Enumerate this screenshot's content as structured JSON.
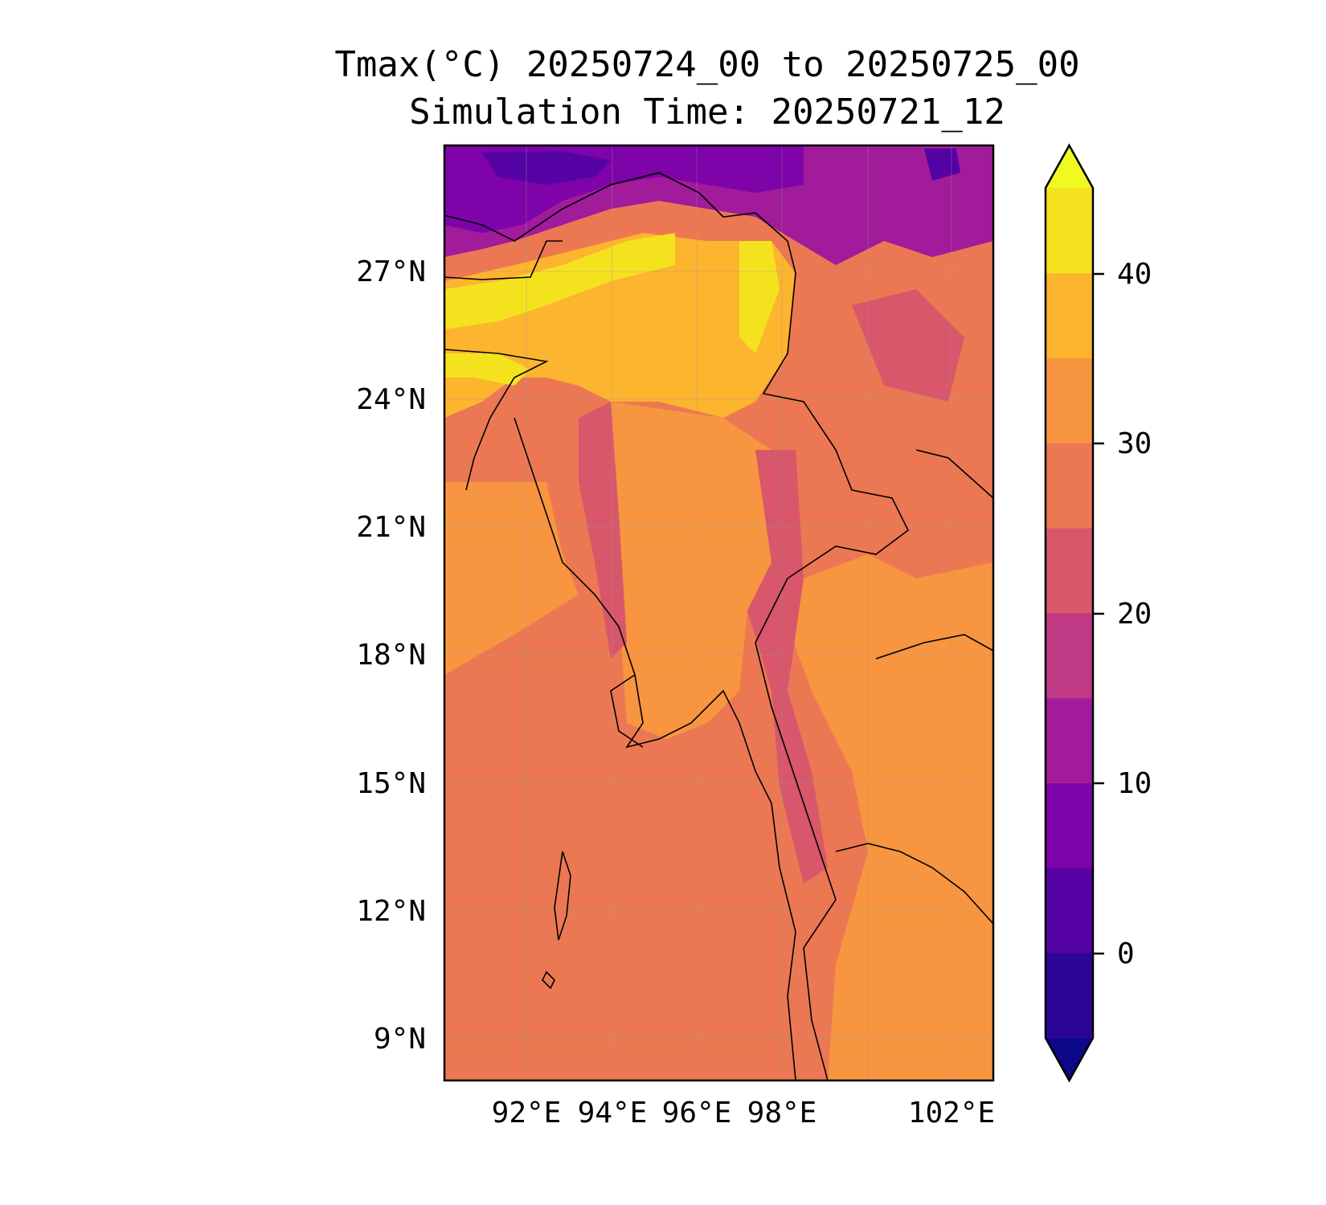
{
  "title": {
    "line1": "Tmax(°C) 20250724_00 to 20250725_00",
    "line2": "Simulation Time: 20250721_12"
  },
  "map": {
    "lat_ticks": [
      "27°N",
      "24°N",
      "21°N",
      "18°N",
      "15°N",
      "12°N",
      "9°N"
    ],
    "lon_ticks": [
      "92°E",
      "94°E",
      "96°E",
      "98°E",
      "102°E"
    ],
    "extent": {
      "lon": [
        90,
        103
      ],
      "lat": [
        8,
        30
      ]
    },
    "gridlines": true
  },
  "colorbar": {
    "ticks": [
      "40",
      "30",
      "20",
      "10",
      "0"
    ],
    "levels": [
      -5,
      0,
      5,
      10,
      15,
      20,
      25,
      30,
      35,
      40,
      45
    ],
    "extend": "both",
    "colors": [
      "#0d0887",
      "#2c0594",
      "#5402a3",
      "#7e03a8",
      "#a11b9b",
      "#bf3984",
      "#d8576b",
      "#ec7853",
      "#f89540",
      "#fdb42f",
      "#f5e21f",
      "#f0f921"
    ]
  },
  "chart_data": {
    "type": "heatmap",
    "title": "Tmax(°C) 20250724_00 to 20250725_00",
    "subtitle": "Simulation Time: 20250721_12",
    "x_ticks": [
      "92°E",
      "94°E",
      "96°E",
      "98°E",
      "102°E"
    ],
    "y_ticks": [
      "27°N",
      "24°N",
      "21°N",
      "18°N",
      "15°N",
      "12°N",
      "9°N"
    ],
    "xlim": [
      90,
      103
    ],
    "ylim": [
      8,
      30
    ],
    "colorbar_ticks": [
      0,
      10,
      20,
      30,
      40
    ],
    "colorbar_range": [
      -5,
      45
    ],
    "colormap": "plasma"
  }
}
